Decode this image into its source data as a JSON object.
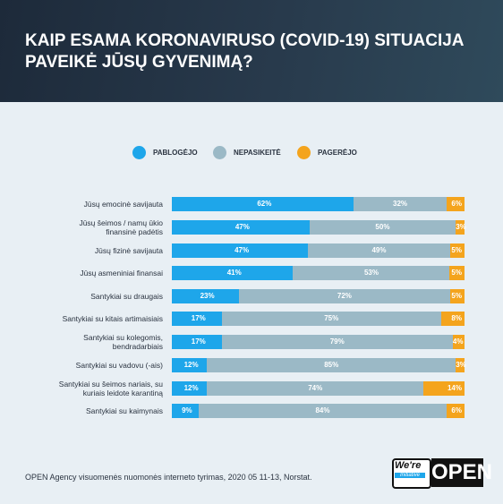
{
  "chart_data": {
    "type": "stacked-bar-horizontal",
    "title": "KAIP ESAMA KORONAVIRUSO (COVID-19) SITUACIJA\nPAVEIKĖ JŪSŲ GYVENIMĄ?",
    "categories": [
      "Jūsų emocinė savijauta",
      "Jūsų šeimos / namų ūkio\nfinansinė padėtis",
      "Jūsų fizinė savijauta",
      "Jūsų asmeniniai finansai",
      "Santykiai su draugais",
      "Santykiai su kitais artimaisiais",
      "Santykiai su kolegomis,\nbendradarbiais",
      "Santykiai su vadovu (-ais)",
      "Santykiai su šeimos nariais, su\nkuriais leidote karantiną",
      "Santykiai su kaimynais"
    ],
    "series": [
      {
        "name": "PABLOGĖJO",
        "color": "#1ea6ea",
        "values": [
          62,
          47,
          47,
          41,
          23,
          17,
          17,
          12,
          12,
          9
        ],
        "value_labels": [
          "62%",
          "47%",
          "47%",
          "41%",
          "23%",
          "17%",
          "17%",
          "12%",
          "12%",
          "9%"
        ]
      },
      {
        "name": "NEPASIKEITĖ",
        "color": "#9bb9c6",
        "values": [
          32,
          50,
          49,
          53,
          72,
          75,
          79,
          85,
          74,
          84
        ],
        "value_labels": [
          "32%",
          "50%",
          "49%",
          "53%",
          "72%",
          "75%",
          "79%",
          "85%",
          "74%",
          "84%"
        ]
      },
      {
        "name": "PAGERĖJO",
        "color": "#f4a41d",
        "values": [
          6,
          3,
          5,
          5,
          5,
          8,
          4,
          3,
          14,
          6
        ],
        "value_labels": [
          "6%",
          "3%",
          "5%",
          "5%",
          "5%",
          "8%",
          "4%",
          "3%",
          "14%",
          "6%"
        ]
      }
    ],
    "source": "OPEN Agency visuomenės nuomonės interneto tyrimas, 2020 05 11-13, Norstat."
  },
  "logo": {
    "top": "We're",
    "middle": "Initiative",
    "bottom": "OPEN"
  }
}
